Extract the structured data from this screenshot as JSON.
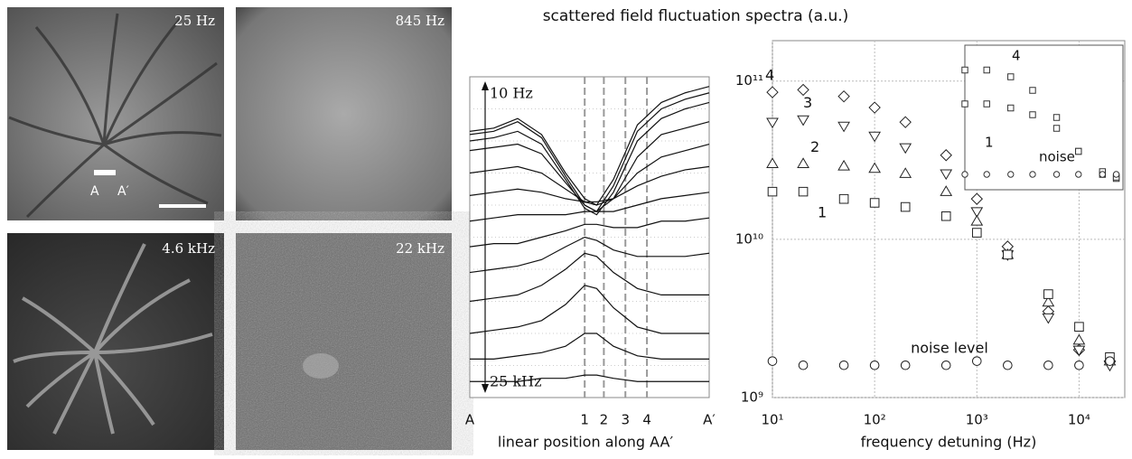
{
  "title": "scattered field fluctuation spectra (a.u.)",
  "images": [
    {
      "label": "25 Hz"
    },
    {
      "label": "845 Hz"
    },
    {
      "label": "4.6 kHz"
    },
    {
      "label": "22 kHz"
    }
  ],
  "image_markers": [
    "A",
    "A′"
  ],
  "chart_data": [
    {
      "type": "line",
      "xlabel": "linear position along AA′",
      "annotations": [
        "10 Hz",
        "25 kHz"
      ],
      "color": "#111111",
      "grid": true,
      "xlim": [
        0,
        1
      ],
      "ylim": [
        0,
        100
      ],
      "xticks": [
        {
          "value": 0,
          "label": "A"
        },
        {
          "value": 0.48,
          "label": "1"
        },
        {
          "value": 0.56,
          "label": "2"
        },
        {
          "value": 0.65,
          "label": "3"
        },
        {
          "value": 0.74,
          "label": "4"
        },
        {
          "value": 1,
          "label": "A′"
        }
      ],
      "yticks": [
        10,
        20,
        30,
        40,
        50,
        60,
        70,
        80,
        90
      ],
      "x": [
        0,
        0.1,
        0.2,
        0.3,
        0.4,
        0.48,
        0.53,
        0.6,
        0.7,
        0.8,
        0.9,
        1
      ],
      "series": [
        {
          "values": [
            83,
            84,
            87,
            82,
            70,
            62,
            60,
            68,
            85,
            92,
            95,
            97
          ]
        },
        {
          "values": [
            82,
            83,
            86,
            81,
            69,
            60,
            58,
            66,
            83,
            90,
            93,
            95
          ]
        },
        {
          "values": [
            80,
            81,
            83,
            79,
            68,
            59,
            57,
            64,
            80,
            87,
            90,
            92
          ]
        },
        {
          "values": [
            77,
            78,
            79,
            76,
            67,
            60,
            58,
            62,
            75,
            82,
            84,
            86
          ]
        },
        {
          "values": [
            70,
            71,
            72,
            70,
            65,
            61,
            60,
            62,
            70,
            75,
            77,
            79
          ]
        },
        {
          "values": [
            63,
            64,
            65,
            64,
            62,
            61,
            61,
            62,
            66,
            69,
            71,
            72
          ]
        },
        {
          "values": [
            55,
            56,
            57,
            57,
            57,
            58,
            58,
            58,
            60,
            62,
            63,
            64
          ]
        },
        {
          "values": [
            47,
            48,
            48,
            50,
            52,
            54,
            54,
            53,
            53,
            55,
            55,
            56
          ]
        },
        {
          "values": [
            39,
            40,
            41,
            43,
            47,
            50,
            49,
            46,
            44,
            44,
            44,
            45
          ]
        },
        {
          "values": [
            30,
            31,
            32,
            35,
            40,
            45,
            44,
            39,
            34,
            32,
            32,
            32
          ]
        },
        {
          "values": [
            20,
            21,
            22,
            24,
            29,
            35,
            34,
            28,
            22,
            20,
            20,
            20
          ]
        },
        {
          "values": [
            12,
            12,
            13,
            14,
            16,
            20,
            20,
            16,
            13,
            12,
            12,
            12
          ]
        },
        {
          "values": [
            5,
            5,
            5,
            6,
            6,
            7,
            7,
            6,
            5,
            5,
            5,
            5
          ]
        }
      ]
    },
    {
      "type": "scatter",
      "xlabel": "frequency detuning (Hz)",
      "log_x": true,
      "log_y": true,
      "grid": true,
      "xlim": [
        10,
        28000
      ],
      "ylim": [
        1000000000,
        180000000000
      ],
      "xticks": [
        {
          "value": 10,
          "label": "10¹"
        },
        {
          "value": 100,
          "label": "10²"
        },
        {
          "value": 1000,
          "label": "10³"
        },
        {
          "value": 10000,
          "label": "10⁴"
        }
      ],
      "yticks": [
        {
          "value": 1000000000,
          "label": "10⁹"
        },
        {
          "value": 10000000000,
          "label": "10¹⁰"
        },
        {
          "value": 100000000000,
          "label": "10¹¹"
        }
      ],
      "x": [
        10,
        20,
        50,
        100,
        200,
        500,
        1000,
        2000,
        5000,
        10000,
        20000
      ],
      "series": [
        {
          "name": "4",
          "marker": "diamond",
          "color": "#222222",
          "values": [
            85000000000,
            88000000000,
            80000000000,
            68000000000,
            55000000000,
            34000000000,
            18000000000,
            9000000000,
            3500000000,
            2000000000,
            1700000000
          ]
        },
        {
          "name": "3",
          "marker": "triangle-down",
          "color": "#222222",
          "values": [
            55000000000,
            57000000000,
            52000000000,
            45000000000,
            38000000000,
            26000000000,
            15000000000,
            8000000000,
            3200000000,
            2000000000,
            1600000000
          ]
        },
        {
          "name": "2",
          "marker": "triangle-up",
          "color": "#222222",
          "values": [
            30000000000,
            30000000000,
            29000000000,
            28000000000,
            26000000000,
            20000000000,
            13000000000,
            8000000000,
            4000000000,
            2300000000,
            1700000000
          ]
        },
        {
          "name": "1",
          "marker": "square",
          "color": "#222222",
          "values": [
            20000000000,
            20000000000,
            18000000000,
            17000000000,
            16000000000,
            14000000000,
            11000000000,
            8000000000,
            4500000000,
            2800000000,
            1800000000
          ]
        },
        {
          "name": "noise level",
          "marker": "circle",
          "color": "#222222",
          "values": [
            1700000000,
            1600000000,
            1600000000,
            1600000000,
            1600000000,
            1600000000,
            1700000000,
            1600000000,
            1600000000,
            1600000000,
            1700000000
          ]
        }
      ]
    },
    {
      "type": "scatter",
      "log_x": true,
      "xlim": [
        10,
        28000
      ],
      "ylim": [
        0,
        100
      ],
      "x": [
        10,
        30,
        100,
        300,
        1000,
        3000,
        10000,
        20000
      ],
      "series": [
        {
          "name": "4",
          "marker": "square",
          "color": "#333333",
          "values": [
            85,
            85,
            80,
            70,
            50,
            25,
            8,
            5
          ]
        },
        {
          "name": "1",
          "marker": "square",
          "color": "#333333",
          "values": [
            60,
            60,
            57,
            52,
            42,
            25,
            10,
            6
          ]
        },
        {
          "name": "noise",
          "marker": "circle",
          "color": "#333333",
          "values": [
            8,
            8,
            8,
            8,
            8,
            8,
            8,
            8
          ]
        }
      ]
    }
  ]
}
